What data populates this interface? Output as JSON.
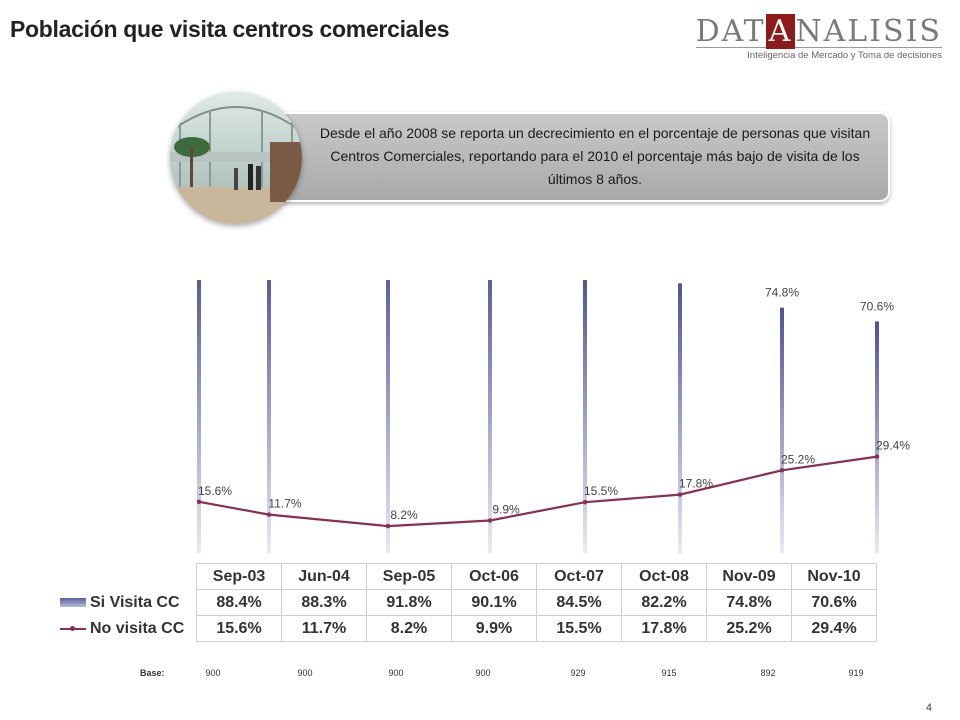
{
  "title": "Población que visita centros comerciales",
  "logo": {
    "pre": "DAT",
    "mid": "A",
    "post": "NALISIS",
    "tagline": "Inteligencia de Mercado y Toma de decisiones"
  },
  "callout": "Desde el año 2008 se reporta un decrecimiento en el porcentaje de personas que visitan Centros Comerciales, reportando para el 2010 el porcentaje más bajo de visita de los últimos 8 años.",
  "photo_icon": "shopping-mall-photo",
  "chart_data": {
    "type": "bar",
    "categories": [
      "Sep-03",
      "Jun-04",
      "Sep-05",
      "Oct-06",
      "Oct-07",
      "Oct-08",
      "Nov-09",
      "Nov-10"
    ],
    "series": [
      {
        "name": "Si Visita CC",
        "type": "bar",
        "values": [
          88.4,
          88.3,
          91.8,
          90.1,
          84.5,
          82.2,
          74.8,
          70.6
        ],
        "labels": [
          "88.4%",
          "88.3%",
          "91.8%",
          "90.1%",
          "84.5%",
          "82.2%",
          "74.8%",
          "70.6%"
        ],
        "color": "#5a5e9c"
      },
      {
        "name": "No visita CC",
        "type": "line",
        "values": [
          15.6,
          11.7,
          8.2,
          9.9,
          15.5,
          17.8,
          25.2,
          29.4
        ],
        "labels": [
          "15.6%",
          "11.7%",
          "8.2%",
          "9.9%",
          "15.5%",
          "17.8%",
          "25.2%",
          "29.4%"
        ],
        "color": "#8b2e57"
      }
    ],
    "ylim": [
      0,
      100
    ],
    "grid": false,
    "data_table": true,
    "base_label": "Base:",
    "base": [
      "900",
      "900",
      "900",
      "900",
      "929",
      "915",
      "892",
      "919"
    ]
  },
  "page_number": "4"
}
